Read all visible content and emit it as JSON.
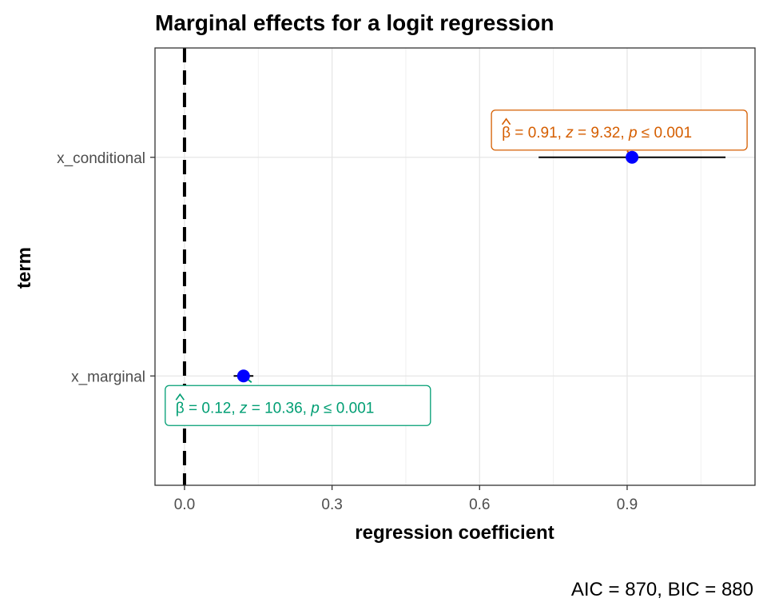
{
  "chart_data": {
    "type": "scatter",
    "title": "Marginal effects for a logit regression",
    "xlabel": "regression coefficient",
    "ylabel": "term",
    "caption": "AIC = 870, BIC = 880",
    "xlim": [
      -0.06,
      1.16
    ],
    "x_ticks": [
      0.0,
      0.3,
      0.6,
      0.9
    ],
    "x_tick_labels": [
      "0.0",
      "0.3",
      "0.6",
      "0.9"
    ],
    "categories": [
      "x_conditional",
      "x_marginal"
    ],
    "reference_line": {
      "x": 0,
      "style": "dashed"
    },
    "grid": true,
    "colors": {
      "point": "#0000ff",
      "errorbar": "#000000",
      "label_conditional": "#d55e00",
      "label_marginal": "#009e73"
    },
    "points": [
      {
        "term": "x_conditional",
        "estimate": 0.91,
        "conf_low": 0.72,
        "conf_high": 1.1,
        "label": {
          "beta": "0.91",
          "z": "9.32",
          "p": "0.001"
        }
      },
      {
        "term": "x_marginal",
        "estimate": 0.12,
        "conf_low": 0.1,
        "conf_high": 0.14,
        "label": {
          "beta": "0.12",
          "z": "10.36",
          "p": "0.001"
        }
      }
    ]
  }
}
